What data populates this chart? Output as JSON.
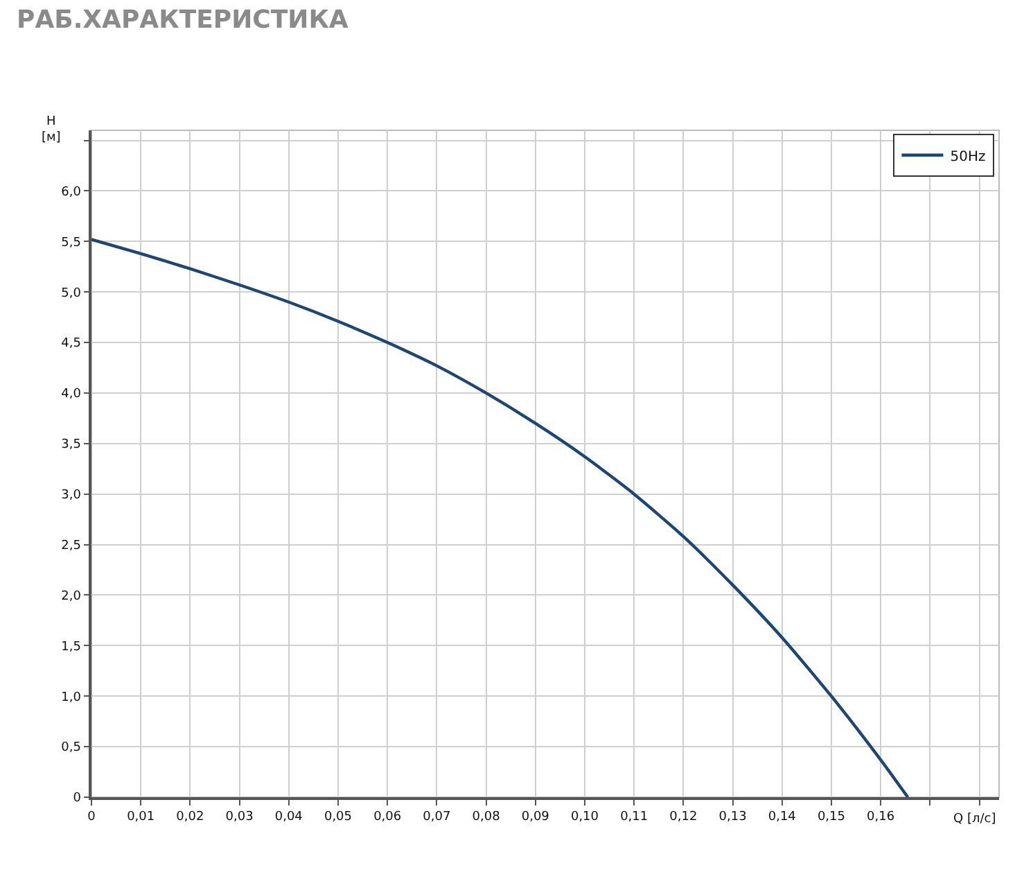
{
  "chart_data": {
    "type": "line",
    "title": "РАБ.ХАРАКТЕРИСТИКА",
    "xlabel": "Q [л/с]",
    "ylabel": "H\n[м]",
    "x": [
      0,
      0.01,
      0.02,
      0.03,
      0.04,
      0.05,
      0.06,
      0.07,
      0.08,
      0.09,
      0.1,
      0.11,
      0.12,
      0.13,
      0.14,
      0.15,
      0.16,
      0.1655
    ],
    "series": [
      {
        "name": "50Hz",
        "color": "#1c4673",
        "values": [
          5.52,
          5.38,
          5.23,
          5.07,
          4.9,
          4.71,
          4.5,
          4.27,
          4.0,
          3.7,
          3.37,
          3.0,
          2.58,
          2.1,
          1.58,
          1.0,
          0.37,
          0
        ]
      }
    ],
    "xlim": [
      0,
      0.184
    ],
    "ylim": [
      0,
      6.6
    ],
    "xticks": [
      {
        "value": 0,
        "label": "0"
      },
      {
        "value": 0.01,
        "label": "0,01"
      },
      {
        "value": 0.02,
        "label": "0,02"
      },
      {
        "value": 0.03,
        "label": "0,03"
      },
      {
        "value": 0.04,
        "label": "0,04"
      },
      {
        "value": 0.05,
        "label": "0,05"
      },
      {
        "value": 0.06,
        "label": "0,06"
      },
      {
        "value": 0.07,
        "label": "0,07"
      },
      {
        "value": 0.08,
        "label": "0,08"
      },
      {
        "value": 0.09,
        "label": "0,09"
      },
      {
        "value": 0.1,
        "label": "0,10"
      },
      {
        "value": 0.11,
        "label": "0,11"
      },
      {
        "value": 0.12,
        "label": "0,12"
      },
      {
        "value": 0.13,
        "label": "0,13"
      },
      {
        "value": 0.14,
        "label": "0,14"
      },
      {
        "value": 0.15,
        "label": "0,15"
      },
      {
        "value": 0.16,
        "label": "0,16"
      },
      {
        "value": 0.17,
        "label": null
      },
      {
        "value": 0.18,
        "label": null
      }
    ],
    "yticks": [
      0,
      {
        "value": 0.5,
        "label": "0,5"
      },
      {
        "value": 1,
        "label": "1,0"
      },
      {
        "value": 1.5,
        "label": "1,5"
      },
      {
        "value": 2,
        "label": "2,0"
      },
      {
        "value": 2.5,
        "label": "2,5"
      },
      {
        "value": 3,
        "label": "3,0"
      },
      {
        "value": 3.5,
        "label": "3,5"
      },
      {
        "value": 4,
        "label": "4,0"
      },
      {
        "value": 4.5,
        "label": "4,5"
      },
      {
        "value": 5,
        "label": "5,0"
      },
      {
        "value": 5.5,
        "label": "5,5"
      },
      {
        "value": 6,
        "label": "6,0"
      },
      {
        "value": 6.5,
        "label": null
      }
    ],
    "grid": true,
    "legend": "top right",
    "marker": "none",
    "line_style": "solid"
  }
}
